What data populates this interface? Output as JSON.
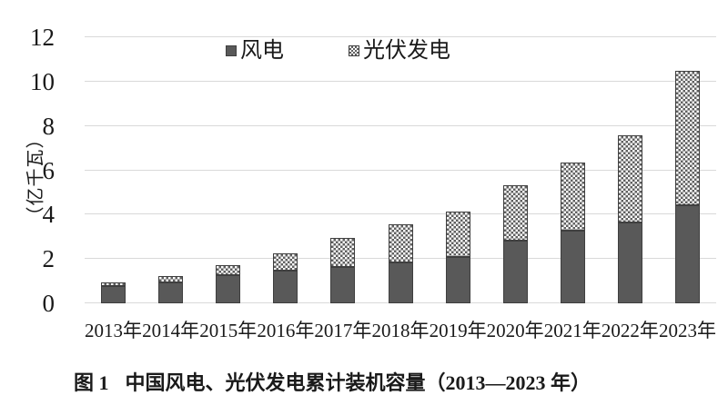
{
  "chart_data": {
    "type": "bar",
    "stacked": true,
    "categories": [
      "2013年",
      "2014年",
      "2015年",
      "2016年",
      "2017年",
      "2018年",
      "2019年",
      "2020年",
      "2021年",
      "2022年",
      "2023年"
    ],
    "series": [
      {
        "name": "风电",
        "fill": "solid",
        "color": "#595959",
        "values": [
          0.77,
          0.96,
          1.29,
          1.49,
          1.64,
          1.84,
          2.1,
          2.81,
          3.28,
          3.65,
          4.41
        ]
      },
      {
        "name": "光伏发电",
        "fill": "checker",
        "color": "#606060",
        "values": [
          0.19,
          0.28,
          0.43,
          0.77,
          1.3,
          1.74,
          2.04,
          2.53,
          3.06,
          3.93,
          6.09
        ]
      }
    ],
    "ylabel": "（亿千瓦）",
    "xlabel": "",
    "ylim": [
      0,
      12
    ],
    "yticks": [
      0,
      2,
      4,
      6,
      8,
      10,
      12
    ],
    "grid": true,
    "legend_position": "top-center",
    "gridline_color": "#d9d9d9"
  },
  "caption": {
    "label": "图 1",
    "text": "中国风电、光伏发电累计装机容量（2013—2023 年）"
  }
}
